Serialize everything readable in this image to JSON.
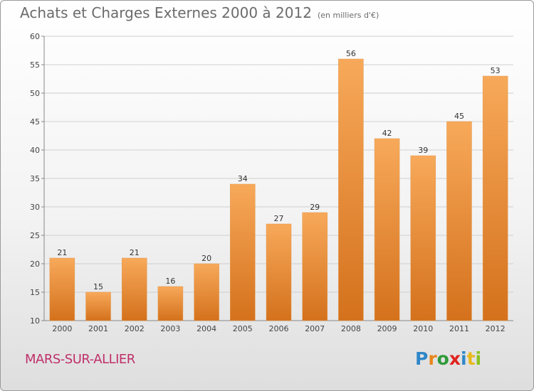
{
  "header": {
    "title": "Achats et Charges Externes 2000 à 2012",
    "unit": "(en milliers d'€)"
  },
  "commune": "MARS-SUR-ALLIER",
  "logo": {
    "p": "P",
    "r": "r",
    "o": "o",
    "x": "x",
    "i": "i",
    "t": "t",
    "i2": "i"
  },
  "colors": {
    "bar_top": "#f7a95a",
    "bar_bottom": "#d4711c",
    "grid": "#cfcfcf",
    "title": "#6b6b6b",
    "commune": "#c0306a"
  },
  "chart_data": {
    "type": "bar",
    "title": "Achats et Charges Externes 2000 à 2012",
    "xlabel": "",
    "ylabel": "",
    "categories": [
      "2000",
      "2001",
      "2002",
      "2003",
      "2004",
      "2005",
      "2006",
      "2007",
      "2008",
      "2009",
      "2010",
      "2011",
      "2012"
    ],
    "values": [
      21,
      15,
      21,
      16,
      20,
      34,
      27,
      29,
      56,
      42,
      39,
      45,
      53
    ],
    "ylim": [
      10,
      60
    ],
    "yticks": [
      10,
      15,
      20,
      25,
      30,
      35,
      40,
      45,
      50,
      55,
      60
    ],
    "grid": true,
    "legend": "none"
  }
}
